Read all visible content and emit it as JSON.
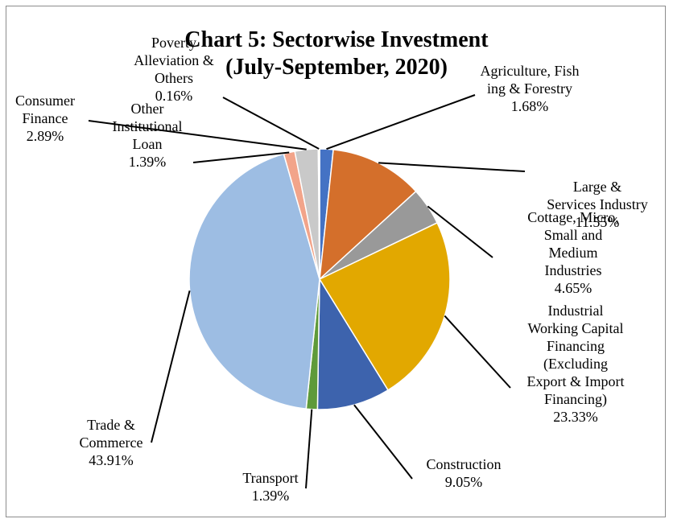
{
  "chart_data": {
    "type": "pie",
    "title": "Chart 5: Sectorwise Investment",
    "subtitle": "(July-September, 2020)",
    "slices": [
      {
        "label": "Agriculture, Fish ing & Forestry",
        "value": 1.68,
        "display": "1.68%",
        "color": "#4472c4"
      },
      {
        "label": "Large & Services Industry",
        "value": 11.55,
        "display": "11.55%",
        "color": "#d46f2b"
      },
      {
        "label": "Cottage, Micro, Small and Medium Industries",
        "value": 4.65,
        "display": "4.65%",
        "color": "#999999"
      },
      {
        "label": "Industrial Working Capital Financing (Excluding Export & Import Financing)",
        "value": 23.33,
        "display": "23.33%",
        "color": "#e2a800"
      },
      {
        "label": "Construction",
        "value": 9.05,
        "display": "9.05%",
        "color": "#3d63ad"
      },
      {
        "label": "Transport",
        "value": 1.39,
        "display": "1.39%",
        "color": "#5e9a3a"
      },
      {
        "label": "Trade & Commerce",
        "value": 43.91,
        "display": "43.91%",
        "color": "#9dbde3"
      },
      {
        "label": "Other Institutional Loan",
        "value": 1.39,
        "display": "1.39%",
        "color": "#f2a48a"
      },
      {
        "label": "Consumer Finance",
        "value": 2.89,
        "display": "2.89%",
        "color": "#c9c9c9"
      },
      {
        "label": "Poverty Alleviation & Others",
        "value": 0.16,
        "display": "0.16%",
        "color": "#ffd966"
      }
    ],
    "label_lines": [
      [
        "Agriculture, Fish",
        "ing & Forestry",
        "1.68%"
      ],
      [
        "Large &",
        "Services Industry",
        "11.55%"
      ],
      [
        "Cottage, Micro,",
        "Small and",
        "Medium",
        "Industries",
        "4.65%"
      ],
      [
        "Industrial",
        "Working Capital",
        "Financing",
        "(Excluding",
        "Export & Import",
        "Financing)",
        "23.33%"
      ],
      [
        "Construction",
        "9.05%"
      ],
      [
        "Transport",
        "1.39%"
      ],
      [
        "Trade &",
        "Commerce",
        "43.91%"
      ],
      [
        "Other",
        "Institutional",
        "Loan",
        "1.39%"
      ],
      [
        "Consumer",
        "Finance",
        "2.89%"
      ],
      [
        "Poverty",
        "Alleviation &",
        "Others",
        "0.16%"
      ]
    ]
  }
}
